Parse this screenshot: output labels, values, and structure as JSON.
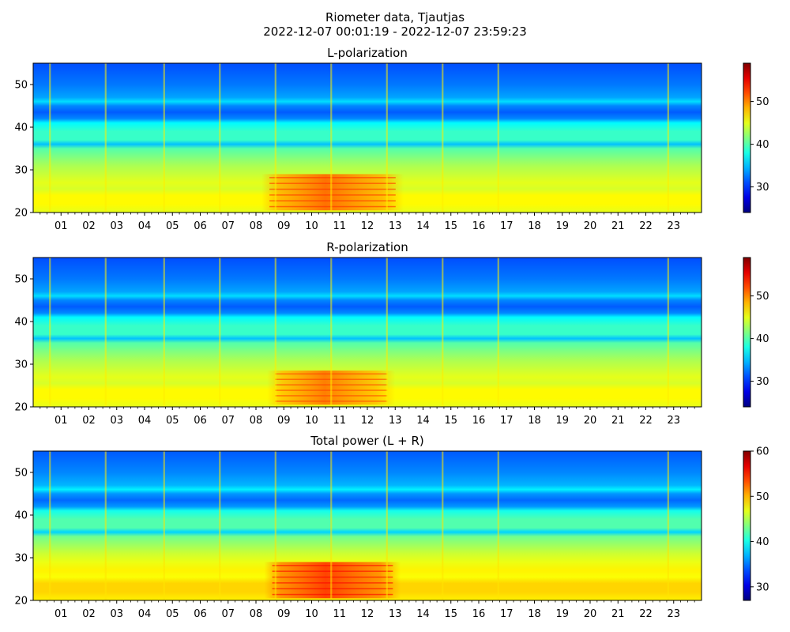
{
  "figure": {
    "suptitle_line1": "Riometer data, Tjautjas",
    "suptitle_line2": "2022-12-07 00:01:19 - 2022-12-07 23:59:23"
  },
  "chart_data": [
    {
      "type": "heatmap",
      "title": "L-polarization",
      "xlabel": "",
      "ylabel": "",
      "x_ticks": [
        "01",
        "02",
        "03",
        "04",
        "05",
        "06",
        "07",
        "08",
        "09",
        "10",
        "11",
        "12",
        "13",
        "14",
        "15",
        "16",
        "17",
        "18",
        "19",
        "20",
        "21",
        "22",
        "23"
      ],
      "xlim_hours": [
        0,
        24
      ],
      "ylim": [
        20,
        55
      ],
      "y_ticks": [
        20,
        30,
        40,
        50
      ],
      "colormap": "jet",
      "color_range": [
        24,
        59
      ],
      "colorbar_ticks": [
        30,
        40,
        50
      ],
      "profile_y": [
        20,
        22,
        24,
        25.5,
        27,
        29,
        31,
        33,
        35,
        36,
        37,
        39,
        41,
        42,
        43.5,
        45,
        46,
        47,
        50,
        55
      ],
      "profile_value": [
        45,
        46,
        46,
        44.5,
        45,
        44,
        43,
        41.5,
        40,
        35,
        39,
        39,
        37,
        33,
        31.5,
        33,
        36,
        34,
        32.5,
        31
      ],
      "enhancement_hours": [
        8.2,
        13.3
      ],
      "enhancement_y": [
        20.5,
        29
      ],
      "enhancement_peak_value": 51,
      "spike_hours": [
        0.6,
        2.6,
        4.7,
        6.7,
        8.7,
        10.7,
        12.7,
        14.7,
        16.7,
        22.8
      ]
    },
    {
      "type": "heatmap",
      "title": "R-polarization",
      "xlabel": "",
      "ylabel": "",
      "x_ticks": [
        "01",
        "02",
        "03",
        "04",
        "05",
        "06",
        "07",
        "08",
        "09",
        "10",
        "11",
        "12",
        "13",
        "14",
        "15",
        "16",
        "17",
        "18",
        "19",
        "20",
        "21",
        "22",
        "23"
      ],
      "xlim_hours": [
        0,
        24
      ],
      "ylim": [
        20,
        55
      ],
      "y_ticks": [
        20,
        30,
        40,
        50
      ],
      "colormap": "jet",
      "color_range": [
        24,
        59
      ],
      "colorbar_ticks": [
        30,
        40,
        50
      ],
      "profile_y": [
        20,
        22,
        24,
        25.5,
        27,
        29,
        31,
        33,
        35,
        36,
        37,
        39,
        41,
        42,
        43.5,
        45,
        46,
        47,
        50,
        55
      ],
      "profile_value": [
        45,
        46,
        46,
        44.5,
        45,
        44,
        43,
        41.5,
        40,
        35,
        39,
        39,
        37,
        33,
        31.5,
        33,
        36,
        34,
        32.5,
        31
      ],
      "enhancement_hours": [
        8.4,
        13.0
      ],
      "enhancement_y": [
        20.5,
        28.5
      ],
      "enhancement_peak_value": 50.5,
      "spike_hours": [
        0.6,
        2.6,
        4.7,
        6.7,
        8.7,
        10.7,
        12.7,
        14.7,
        16.7,
        22.8
      ]
    },
    {
      "type": "heatmap",
      "title": "Total power (L + R)",
      "xlabel": "",
      "ylabel": "",
      "x_ticks": [
        "01",
        "02",
        "03",
        "04",
        "05",
        "06",
        "07",
        "08",
        "09",
        "10",
        "11",
        "12",
        "13",
        "14",
        "15",
        "16",
        "17",
        "18",
        "19",
        "20",
        "21",
        "22",
        "23"
      ],
      "xlim_hours": [
        0,
        24
      ],
      "ylim": [
        20,
        55
      ],
      "y_ticks": [
        20,
        30,
        40,
        50
      ],
      "colormap": "jet",
      "color_range": [
        27,
        60
      ],
      "colorbar_ticks": [
        30,
        40,
        50,
        60
      ],
      "profile_y": [
        20,
        22,
        24,
        25.5,
        27,
        29,
        31,
        33,
        35,
        36,
        37,
        39,
        41,
        42,
        43.5,
        45,
        46,
        47,
        50,
        55
      ],
      "profile_value": [
        48,
        49,
        49,
        47.5,
        48,
        47,
        46,
        44.5,
        43,
        38,
        42,
        42,
        40,
        36,
        34.5,
        36,
        39,
        37,
        35.5,
        34
      ],
      "enhancement_hours": [
        8.3,
        13.2
      ],
      "enhancement_y": [
        20.5,
        29
      ],
      "enhancement_peak_value": 54,
      "spike_hours": [
        0.6,
        2.6,
        4.7,
        6.7,
        8.7,
        10.7,
        12.7,
        14.7,
        16.7,
        22.8
      ]
    }
  ]
}
